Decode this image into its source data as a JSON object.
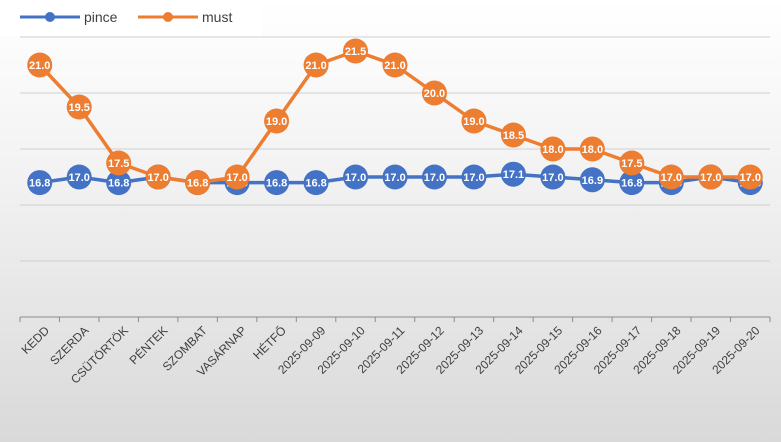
{
  "chart_data": {
    "type": "line",
    "title": "",
    "xlabel": "",
    "ylabel": "",
    "ylim": [
      12,
      22.5
    ],
    "grid": true,
    "legend_position": "top-left",
    "categories": [
      "KEDD",
      "SZERDA",
      "CSÜTÖRTÖK",
      "PÉNTEK",
      "SZOMBAT",
      "VASÁRNAP",
      "HÉTFŐ",
      "2025-09-09",
      "2025-09-10",
      "2025-09-11",
      "2025-09-12",
      "2025-09-13",
      "2025-09-14",
      "2025-09-15",
      "2025-09-16",
      "2025-09-17",
      "2025-09-18",
      "2025-09-19",
      "2025-09-20"
    ],
    "series": [
      {
        "name": "pince",
        "color": "#4472C4",
        "values": [
          16.8,
          17.0,
          16.8,
          17.0,
          16.8,
          16.8,
          16.8,
          16.8,
          17.0,
          17.0,
          17.0,
          17.0,
          17.1,
          17.0,
          16.9,
          16.8,
          16.8,
          17.0,
          16.8
        ]
      },
      {
        "name": "must",
        "color": "#ED7D31",
        "values": [
          21.0,
          19.5,
          17.5,
          17.0,
          16.8,
          17.0,
          19.0,
          21.0,
          21.5,
          21.0,
          20.0,
          19.0,
          18.5,
          18.0,
          18.0,
          17.5,
          17.0,
          17.0,
          17.0
        ]
      }
    ]
  }
}
